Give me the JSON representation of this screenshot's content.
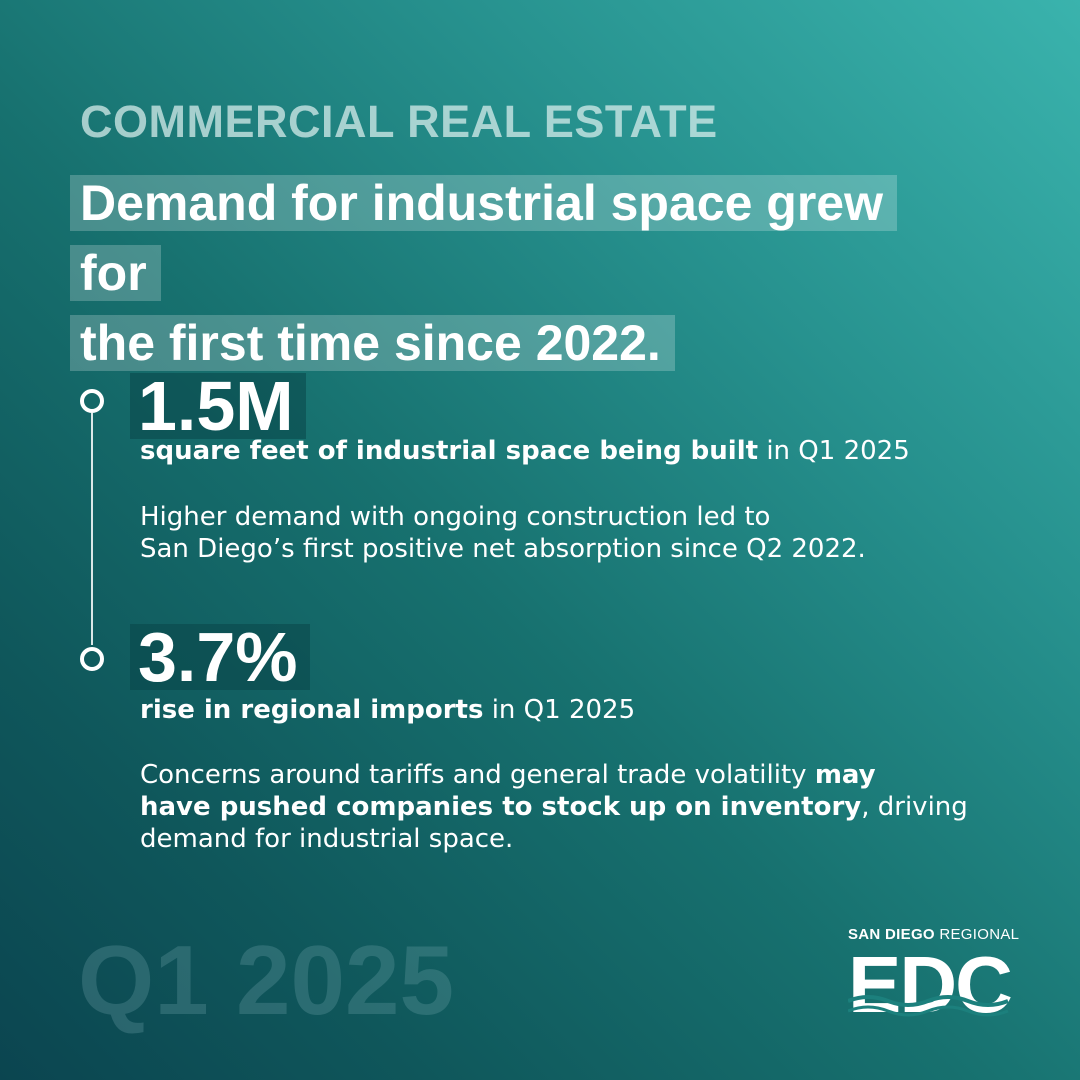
{
  "eyebrow": "COMMERCIAL REAL ESTATE",
  "headline": {
    "line1": "Demand for industrial space grew for",
    "line2": "the first time since 2022."
  },
  "stats": [
    {
      "number": "1.5M",
      "caption_bold": "square feet of industrial space being built",
      "caption_rest": " in Q1 2025",
      "body_line1": "Higher demand with ongoing construction led to",
      "body_line2": "San Diego’s first positive net absorption since Q2 2022."
    },
    {
      "number": "3.7%",
      "caption_bold": "rise in regional imports",
      "caption_rest": " in Q1 2025",
      "body_part1": "Concerns around tariffs and general trade volatility ",
      "body_bold1": "may",
      "body_bold2": "have pushed companies to stock up on inventory",
      "body_part2": ", driving",
      "body_part3": "demand for industrial space."
    }
  ],
  "period": "Q1 2025",
  "logo": {
    "top_bold": "SAN DIEGO",
    "top_regular": "REGIONAL",
    "mark": "EDC"
  },
  "colors": {
    "gradient_light": "#3ab3ad",
    "gradient_dark": "#0b4550",
    "text": "#ffffff"
  }
}
